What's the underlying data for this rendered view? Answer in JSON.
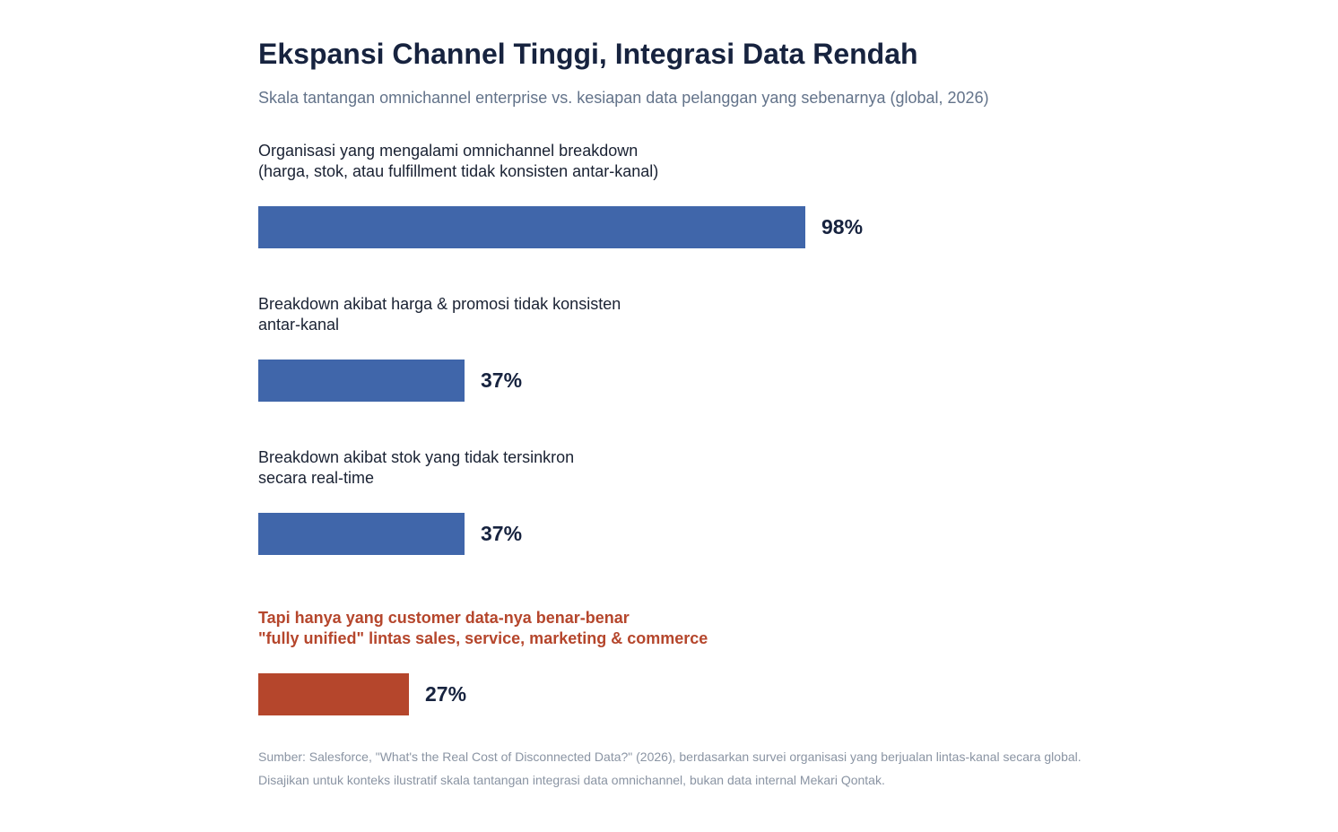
{
  "title": "Ekspansi Channel Tinggi, Integrasi Data Rendah",
  "subtitle": "Skala tantangan omnichannel enterprise vs. kesiapan data pelanggan yang sebenarnya (global, 2026)",
  "colors": {
    "primary": "#4066aa",
    "accent": "#b5462c"
  },
  "chart_data": {
    "type": "bar",
    "orientation": "horizontal",
    "unit": "%",
    "xlim": [
      0,
      100
    ],
    "grid": false,
    "rows": [
      {
        "label_lines": [
          "Organisasi yang mengalami omnichannel breakdown",
          "(harga, stok, atau fulfillment tidak konsisten antar-kanal)"
        ],
        "value": 98,
        "value_label": "98%",
        "highlight": false
      },
      {
        "label_lines": [
          "Breakdown akibat harga & promosi tidak konsisten",
          "antar-kanal"
        ],
        "value": 37,
        "value_label": "37%",
        "highlight": false
      },
      {
        "label_lines": [
          "Breakdown akibat stok yang tidak tersinkron",
          "secara real-time"
        ],
        "value": 37,
        "value_label": "37%",
        "highlight": false
      },
      {
        "label_lines": [
          "Tapi hanya yang customer data-nya benar-benar",
          "\"fully unified\" lintas sales, service, marketing & commerce"
        ],
        "value": 27,
        "value_label": "27%",
        "highlight": true
      }
    ]
  },
  "source_lines": [
    "Sumber: Salesforce, \"What's the Real Cost of Disconnected Data?\" (2026), berdasarkan survei organisasi yang berjualan lintas-kanal secara global.",
    "Disajikan untuk konteks ilustratif skala tantangan integrasi data omnichannel, bukan data internal Mekari Qontak."
  ]
}
